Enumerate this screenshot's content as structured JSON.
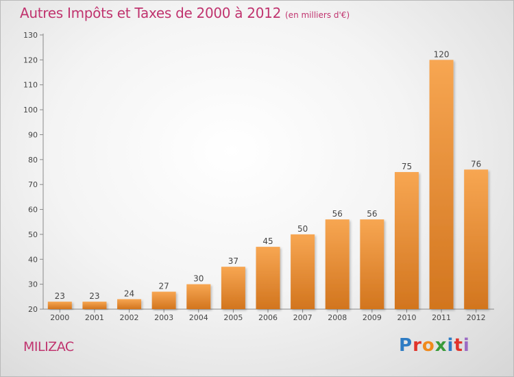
{
  "title": "Autres Impôts et Taxes de 2000 à 2012",
  "unit_label": "(en milliers d'€)",
  "town": "MILIZAC",
  "brand": "Proxiti",
  "colors": {
    "title": "#c0336e",
    "bar_light": "#f7a652",
    "bar_dark": "#d2751e",
    "brand_letters": [
      "#2e7cc4",
      "#e0342b",
      "#f08a1c",
      "#3a9b3a",
      "#2e7cc4",
      "#e0342b",
      "#9b6bc4"
    ]
  },
  "chart_data": {
    "type": "bar",
    "title": "Autres Impôts et Taxes de 2000 à 2012",
    "subtitle": "(en milliers d'€)",
    "categories": [
      "2000",
      "2001",
      "2002",
      "2003",
      "2004",
      "2005",
      "2006",
      "2007",
      "2008",
      "2009",
      "2010",
      "2011",
      "2012"
    ],
    "values": [
      23,
      23,
      24,
      27,
      30,
      37,
      45,
      50,
      56,
      56,
      75,
      120,
      76
    ],
    "ylim": [
      20,
      130
    ],
    "yticks": [
      20,
      30,
      40,
      50,
      60,
      70,
      80,
      90,
      100,
      110,
      120,
      130
    ],
    "xlabel": "",
    "ylabel": "",
    "grid": false,
    "data_labels": true
  }
}
